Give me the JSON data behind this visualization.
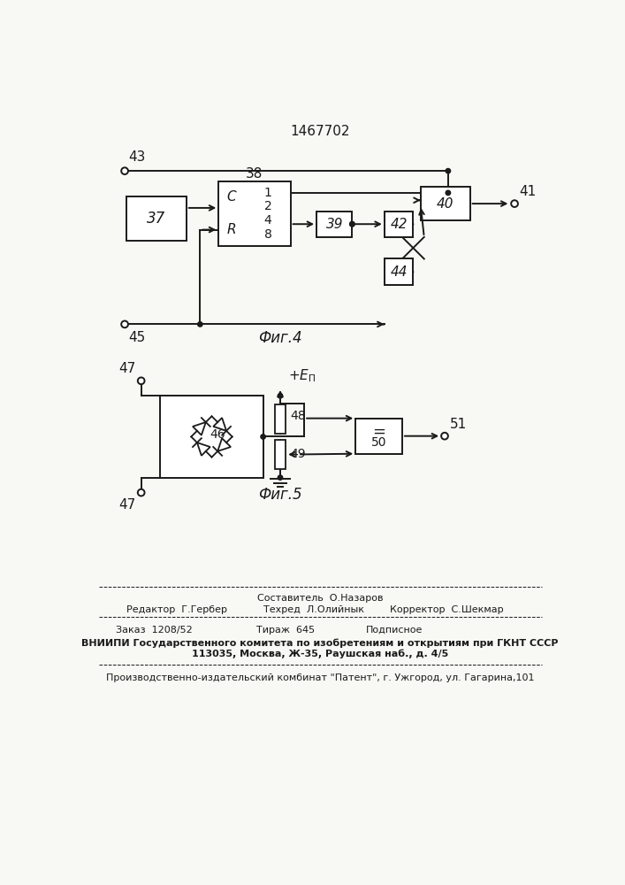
{
  "title": "1467702",
  "fig4_label": "Фиг.4",
  "fig5_label": "Фиг.5",
  "bg_color": "#f8f8f4",
  "line_color": "#1a1a1a",
  "footer_composer": "Составитель  О.Назаров",
  "footer_line1_left": "Редактор  Г.Гербер",
  "footer_line1_center": "Техред  Л.Олийнык",
  "footer_line1_right": "Корректор  С.Шекмар",
  "footer_line2_left": "Заказ  1208/52",
  "footer_line2_center": "Тираж  645",
  "footer_line2_right": "Подписное",
  "footer_line3": "ВНИИПИ Государственного комитета по изобретениям и открытиям при ГКНТ СССР",
  "footer_line4": "113035, Москва, Ж-35, Раушская наб., д. 4/5",
  "footer_line5": "Производственно-издательский комбинат \"Патент\", г. Ужгород, ул. Гагарина,101"
}
